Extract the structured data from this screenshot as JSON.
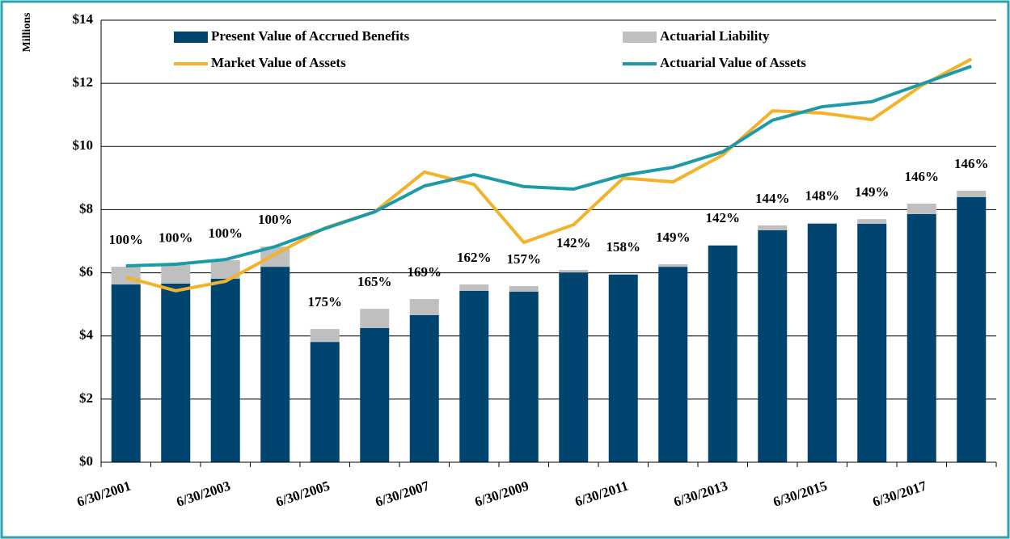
{
  "chart_data": {
    "type": "bar",
    "y_axis_label": "Millions",
    "categories": [
      "6/30/2001",
      null,
      "6/30/2003",
      null,
      "6/30/2005",
      null,
      "6/30/2007",
      null,
      "6/30/2009",
      null,
      "6/30/2011",
      null,
      "6/30/2013",
      null,
      "6/30/2015",
      null,
      "6/30/2017",
      null
    ],
    "series": [
      {
        "name": "Present Value of Accrued Benefits",
        "color": "#004570",
        "stack": true,
        "values": [
          5.63,
          5.66,
          5.81,
          6.19,
          3.81,
          4.25,
          4.66,
          5.43,
          5.4,
          6.01,
          5.94,
          6.19,
          6.86,
          7.35,
          7.55,
          7.55,
          7.86,
          8.4
        ]
      },
      {
        "name": "Actuarial Liability",
        "color": "#bfbfbf",
        "stack": true,
        "values": [
          0.56,
          0.59,
          0.59,
          0.64,
          0.41,
          0.61,
          0.51,
          0.2,
          0.18,
          0.08,
          0.02,
          0.08,
          0.02,
          0.15,
          0.03,
          0.15,
          0.33,
          0.2
        ]
      },
      {
        "name": "Market Value of Assets",
        "color": "#f2b32a",
        "line": true,
        "values": [
          5.86,
          5.43,
          5.73,
          6.58,
          7.42,
          7.93,
          9.19,
          8.8,
          6.96,
          7.52,
          9.0,
          8.88,
          9.73,
          11.13,
          11.06,
          10.85,
          11.93,
          12.77
        ]
      },
      {
        "name": "Actuarial Value of Assets",
        "color": "#1d9aa7",
        "line": true,
        "values": [
          6.22,
          6.27,
          6.42,
          6.83,
          7.4,
          7.93,
          8.75,
          9.11,
          8.73,
          8.65,
          9.09,
          9.34,
          9.83,
          10.83,
          11.26,
          11.42,
          11.98,
          12.54
        ]
      }
    ],
    "funded_ratio_labels": [
      "100%",
      "100%",
      "100%",
      "100%",
      "175%",
      "165%",
      "169%",
      "162%",
      "157%",
      "142%",
      "158%",
      "149%",
      "142%",
      "144%",
      "148%",
      "149%",
      "146%",
      "146%"
    ],
    "ylim": [
      0,
      14
    ],
    "yticks": [
      {
        "value": 0,
        "label": "$0"
      },
      {
        "value": 2,
        "label": "$2"
      },
      {
        "value": 4,
        "label": "$4"
      },
      {
        "value": 6,
        "label": "$6"
      },
      {
        "value": 8,
        "label": "$8"
      },
      {
        "value": 10,
        "label": "$10"
      },
      {
        "value": 12,
        "label": "$12"
      },
      {
        "value": 14,
        "label": "$14"
      }
    ],
    "grid": true
  }
}
